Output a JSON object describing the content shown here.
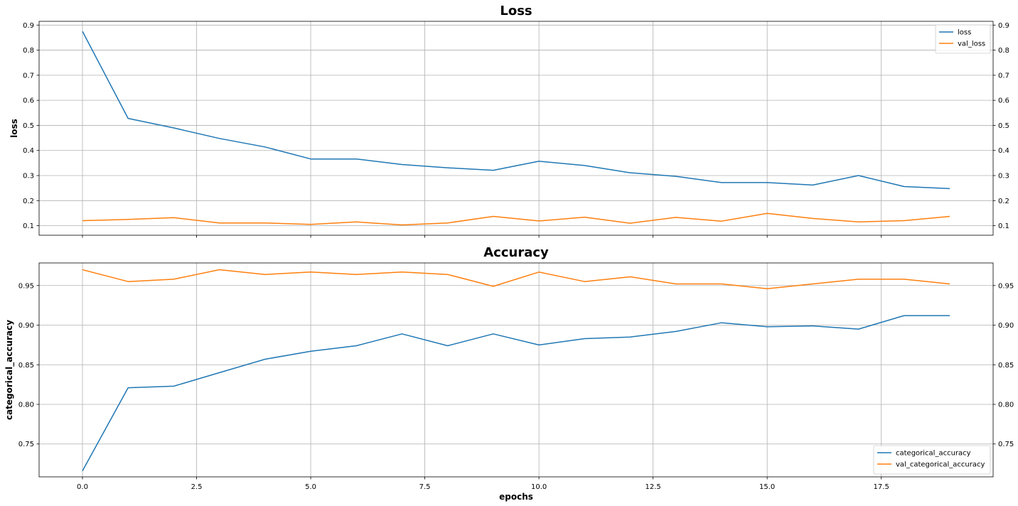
{
  "chart_data": [
    {
      "type": "line",
      "title": "Loss",
      "ylabel": "loss",
      "xlabel": "",
      "x": [
        0,
        1,
        2,
        3,
        4,
        5,
        6,
        7,
        8,
        9,
        10,
        11,
        12,
        13,
        14,
        15,
        16,
        17,
        18,
        19
      ],
      "xlim": [
        -0.95,
        19.95
      ],
      "ylim": [
        0.062,
        0.915
      ],
      "x_ticks": [
        0.0,
        2.5,
        5.0,
        7.5,
        10.0,
        12.5,
        15.0,
        17.5
      ],
      "x_tick_labels": [
        "0.0",
        "2.5",
        "5.0",
        "7.5",
        "10.0",
        "12.5",
        "15.0",
        "17.5"
      ],
      "y_ticks": [
        0.1,
        0.2,
        0.3,
        0.4,
        0.5,
        0.6,
        0.7,
        0.8,
        0.9
      ],
      "y_tick_labels": [
        "0.1",
        "0.2",
        "0.3",
        "0.4",
        "0.5",
        "0.6",
        "0.7",
        "0.8",
        "0.9"
      ],
      "x_tick_labels_visible": false,
      "right_axis_labels": true,
      "grid": true,
      "legend_position": "upper-right",
      "series": [
        {
          "name": "loss",
          "color": "#1f77b4",
          "values": [
            0.875,
            0.528,
            0.49,
            0.448,
            0.414,
            0.366,
            0.366,
            0.344,
            0.331,
            0.321,
            0.357,
            0.34,
            0.311,
            0.297,
            0.272,
            0.272,
            0.262,
            0.3,
            0.256,
            0.248
          ]
        },
        {
          "name": "val_loss",
          "color": "#ff7f0e",
          "values": [
            0.12,
            0.125,
            0.132,
            0.111,
            0.111,
            0.105,
            0.115,
            0.103,
            0.111,
            0.137,
            0.119,
            0.134,
            0.11,
            0.133,
            0.118,
            0.149,
            0.129,
            0.115,
            0.12,
            0.137
          ]
        }
      ]
    },
    {
      "type": "line",
      "title": "Accuracy",
      "ylabel": "categorical_accuracy",
      "xlabel": "epochs",
      "x": [
        0,
        1,
        2,
        3,
        4,
        5,
        6,
        7,
        8,
        9,
        10,
        11,
        12,
        13,
        14,
        15,
        16,
        17,
        18,
        19
      ],
      "xlim": [
        -0.95,
        19.95
      ],
      "ylim": [
        0.7085,
        0.9785
      ],
      "x_ticks": [
        0.0,
        2.5,
        5.0,
        7.5,
        10.0,
        12.5,
        15.0,
        17.5
      ],
      "x_tick_labels": [
        "0.0",
        "2.5",
        "5.0",
        "7.5",
        "10.0",
        "12.5",
        "15.0",
        "17.5"
      ],
      "y_ticks": [
        0.75,
        0.8,
        0.85,
        0.9,
        0.95
      ],
      "y_tick_labels": [
        "0.75",
        "0.80",
        "0.85",
        "0.90",
        "0.95"
      ],
      "x_tick_labels_visible": true,
      "right_axis_labels": true,
      "grid": true,
      "legend_position": "lower-right",
      "series": [
        {
          "name": "categorical_accuracy",
          "color": "#1f77b4",
          "values": [
            0.716,
            0.821,
            0.823,
            0.84,
            0.857,
            0.867,
            0.874,
            0.889,
            0.874,
            0.889,
            0.875,
            0.883,
            0.885,
            0.892,
            0.903,
            0.898,
            0.899,
            0.895,
            0.912,
            0.912
          ]
        },
        {
          "name": "val_categorical_accuracy",
          "color": "#ff7f0e",
          "values": [
            0.97,
            0.955,
            0.958,
            0.97,
            0.964,
            0.967,
            0.964,
            0.967,
            0.964,
            0.949,
            0.967,
            0.955,
            0.961,
            0.952,
            0.952,
            0.946,
            0.952,
            0.958,
            0.958,
            0.952
          ]
        }
      ]
    }
  ]
}
